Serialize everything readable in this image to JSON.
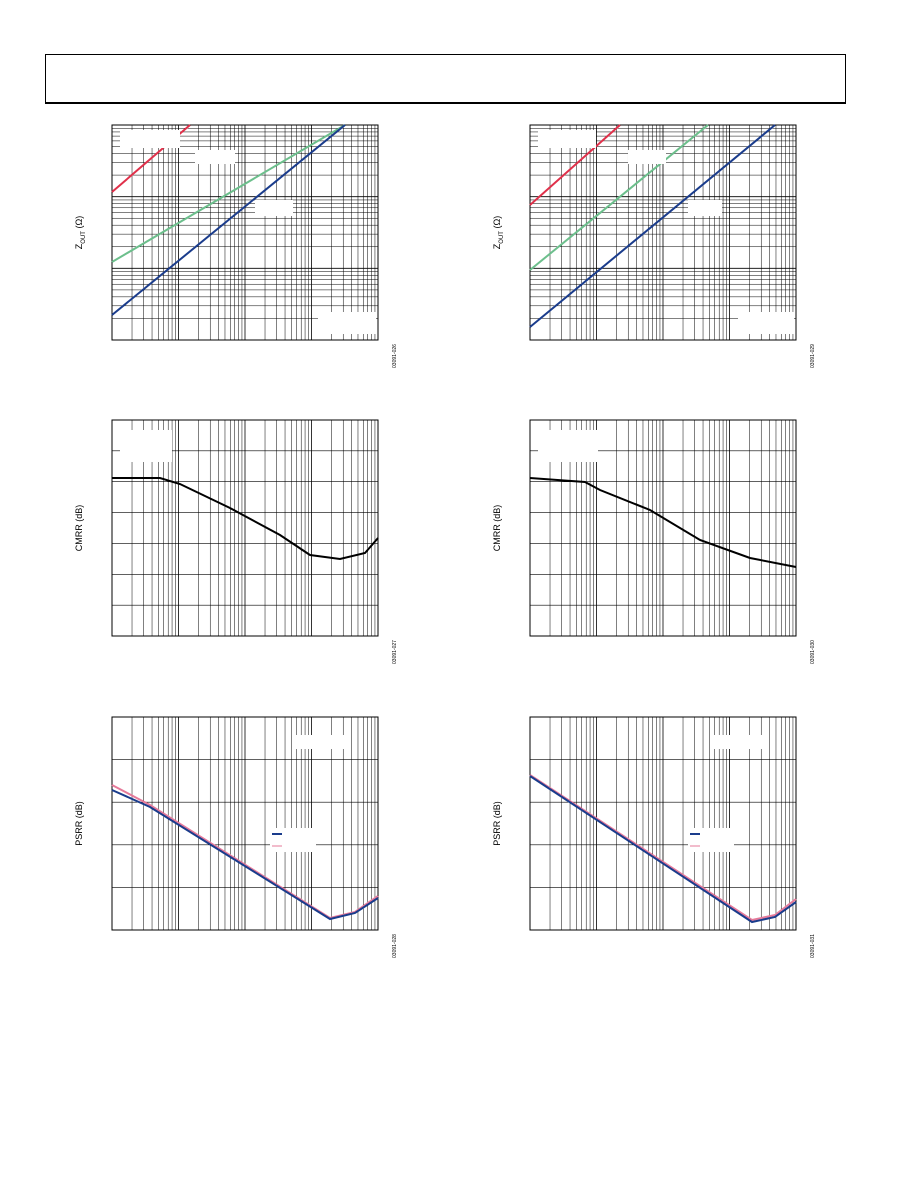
{
  "panels": [
    {
      "ylabel": {
        "main": "Z",
        "sub": "OUT",
        "unit": " (Ω)"
      },
      "code": "03091-026"
    },
    {
      "ylabel": {
        "main": "Z",
        "sub": "OUT",
        "unit": " (Ω)"
      },
      "code": "03091-029"
    },
    {
      "ylabel": {
        "main": "CMRR (dB)"
      },
      "code": "03091-027"
    },
    {
      "ylabel": {
        "main": "CMRR (dB)"
      },
      "code": "03091-030"
    },
    {
      "ylabel": {
        "main": "PSRR (dB)"
      },
      "code": "03091-028"
    },
    {
      "ylabel": {
        "main": "PSRR (dB)"
      },
      "code": "03091-031"
    }
  ]
}
